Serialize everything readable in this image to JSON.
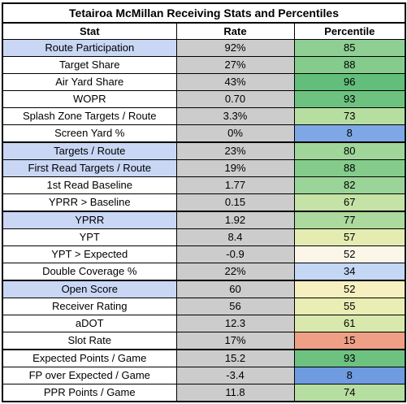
{
  "title": "Tetairoa McMillan Receiving Stats and Percentiles",
  "headers": {
    "stat": "Stat",
    "rate": "Rate",
    "percentile": "Percentile"
  },
  "rows": [
    {
      "stat": "Route Participation",
      "rate": "92%",
      "percentile": "85",
      "highlight": true,
      "color": "#8fcf94",
      "section_start": false
    },
    {
      "stat": "Target Share",
      "rate": "27%",
      "percentile": "88",
      "highlight": false,
      "color": "#85cc8c",
      "section_start": false
    },
    {
      "stat": "Air Yard Share",
      "rate": "43%",
      "percentile": "96",
      "highlight": false,
      "color": "#63be7b",
      "section_start": false
    },
    {
      "stat": "WOPR",
      "rate": "0.70",
      "percentile": "93",
      "highlight": false,
      "color": "#6ec280",
      "section_start": false
    },
    {
      "stat": "Splash Zone Targets / Route",
      "rate": "3.3%",
      "percentile": "73",
      "highlight": false,
      "color": "#b7dea1",
      "section_start": false
    },
    {
      "stat": "Screen Yard %",
      "rate": "0%",
      "percentile": "8",
      "highlight": false,
      "color": "#7ea7e5",
      "section_start": false
    },
    {
      "stat": "Targets / Route",
      "rate": "23%",
      "percentile": "80",
      "highlight": true,
      "color": "#a0d69a",
      "section_start": true
    },
    {
      "stat": "First Read Targets / Route",
      "rate": "19%",
      "percentile": "88",
      "highlight": true,
      "color": "#85cc8c",
      "section_start": false
    },
    {
      "stat": "1st Read Baseline",
      "rate": "1.77",
      "percentile": "82",
      "highlight": false,
      "color": "#9bd498",
      "section_start": false
    },
    {
      "stat": "YPRR > Baseline",
      "rate": "0.15",
      "percentile": "67",
      "highlight": false,
      "color": "#c6e3a7",
      "section_start": false
    },
    {
      "stat": "YPRR",
      "rate": "1.92",
      "percentile": "77",
      "highlight": true,
      "color": "#acd99d",
      "section_start": true
    },
    {
      "stat": "YPT",
      "rate": "8.4",
      "percentile": "57",
      "highlight": false,
      "color": "#e4ecb2",
      "section_start": false
    },
    {
      "stat": "YPT > Expected",
      "rate": "-0.9",
      "percentile": "52",
      "highlight": false,
      "color": "#fbf6e8",
      "section_start": false
    },
    {
      "stat": "Double Coverage %",
      "rate": "22%",
      "percentile": "34",
      "highlight": false,
      "color": "#c4d7f4",
      "section_start": false
    },
    {
      "stat": "Open Score",
      "rate": "60",
      "percentile": "52",
      "highlight": true,
      "color": "#f6efbf",
      "section_start": true
    },
    {
      "stat": "Receiver Rating",
      "rate": "56",
      "percentile": "55",
      "highlight": false,
      "color": "#eaedb4",
      "section_start": false
    },
    {
      "stat": "aDOT",
      "rate": "12.3",
      "percentile": "61",
      "highlight": false,
      "color": "#d9e8ad",
      "section_start": false
    },
    {
      "stat": "Slot Rate",
      "rate": "17%",
      "percentile": "15",
      "highlight": false,
      "color": "#ee9f85",
      "section_start": false
    },
    {
      "stat": "Expected Points / Game",
      "rate": "15.2",
      "percentile": "93",
      "highlight": false,
      "color": "#6ec280",
      "section_start": true
    },
    {
      "stat": "FP over Expected / Game",
      "rate": "-3.4",
      "percentile": "8",
      "highlight": false,
      "color": "#6f9be0",
      "section_start": false
    },
    {
      "stat": "PPR Points / Game",
      "rate": "11.8",
      "percentile": "74",
      "highlight": false,
      "color": "#b7dea1",
      "section_start": false
    }
  ]
}
